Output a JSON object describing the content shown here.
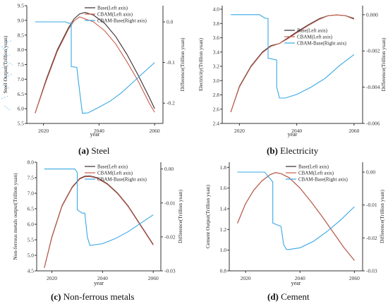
{
  "colors": {
    "base": "#3a2b2e",
    "cbam": "#c8604d",
    "diff": "#38a8e6",
    "axis": "#333333",
    "artifact": "#5ab8ea"
  },
  "panels": [
    {
      "key": "a",
      "caption_letter": "(a)",
      "caption_text": " Steel",
      "chart_data": {
        "type": "line",
        "title": "",
        "xlabel": "year",
        "ylabel_left": "Steel Output(Trillion yuan)",
        "ylabel_right": "Difference(Trillion yuan)",
        "xlim": [
          2014,
          2063
        ],
        "ylim_left": [
          5.5,
          9.5
        ],
        "ylim_right": [
          -0.25,
          0.04
        ],
        "x_ticks": [
          2020,
          2040,
          2060
        ],
        "y_left_ticks": [
          "5.5",
          "6.0",
          "6.5",
          "7.0",
          "7.5",
          "8.0",
          "8.5",
          "9.0",
          "9.5"
        ],
        "y_right_ticks": [
          "0.0",
          "-0.1",
          "-0.2"
        ],
        "legend": [
          "Base(Left axis)",
          "CBAM(Left axis)",
          "CBAM-Base(Right axis)"
        ],
        "legend_position": "top-right",
        "series": [
          {
            "name": "Base(Left axis)",
            "axis": "left",
            "color_key": "base",
            "x": [
              2017,
              2021,
              2025,
              2029,
              2031,
              2033,
              2035,
              2038,
              2042,
              2046,
              2050,
              2054,
              2058,
              2060
            ],
            "y": [
              5.85,
              7.0,
              8.0,
              8.75,
              9.05,
              9.22,
              9.27,
              9.18,
              8.9,
              8.45,
              7.85,
              7.15,
              6.4,
              6.0
            ]
          },
          {
            "name": "CBAM(Left axis)",
            "axis": "left",
            "color_key": "cbam",
            "x": [
              2017,
              2021,
              2025,
              2029,
              2031,
              2033,
              2035,
              2038,
              2042,
              2046,
              2050,
              2054,
              2058,
              2060
            ],
            "y": [
              5.85,
              6.95,
              7.95,
              8.7,
              8.98,
              9.12,
              9.05,
              8.95,
              8.65,
              8.2,
              7.6,
              6.95,
              6.2,
              5.88
            ]
          },
          {
            "name": "CBAM-Base(Right axis)",
            "axis": "right",
            "color_key": "diff",
            "x": [
              2017,
              2028,
              2029,
              2030,
              2030,
              2032,
              2033,
              2034,
              2036,
              2040,
              2044,
              2048,
              2052,
              2056,
              2060
            ],
            "y": [
              0.0,
              0.0,
              -0.003,
              -0.003,
              -0.11,
              -0.112,
              -0.17,
              -0.225,
              -0.224,
              -0.21,
              -0.195,
              -0.175,
              -0.15,
              -0.125,
              -0.1
            ]
          }
        ]
      }
    },
    {
      "key": "b",
      "caption_letter": "(b)",
      "caption_text": " Electricity",
      "chart_data": {
        "type": "line",
        "title": "",
        "xlabel": "year",
        "ylabel_left": "Electricity(Trillion yuan)",
        "ylabel_right": "Difference(Trillion yuan)",
        "xlim": [
          2014,
          2063
        ],
        "ylim_left": [
          2.4,
          4.05
        ],
        "ylim_right": [
          -0.006,
          0.0005
        ],
        "x_ticks": [
          2020,
          2040,
          2060
        ],
        "y_left_ticks": [
          "2.4",
          "2.6",
          "2.8",
          "3.0",
          "3.2",
          "3.4",
          "3.6",
          "3.8",
          "4.0"
        ],
        "y_right_ticks": [
          "0.000",
          "-0.002",
          "-0.004",
          "-0.006"
        ],
        "legend": [
          "Base(Left axis)",
          "CBAM(Left axis)",
          "CBAM-Base(Right axis)"
        ],
        "legend_position": "right",
        "series": [
          {
            "name": "Base(Left axis)",
            "axis": "left",
            "color_key": "base",
            "x": [
              2017,
              2020,
              2024,
              2028,
              2031,
              2034,
              2037,
              2040,
              2044,
              2048,
              2051,
              2054,
              2057,
              2060
            ],
            "y": [
              2.56,
              2.92,
              3.2,
              3.4,
              3.49,
              3.52,
              3.6,
              3.68,
              3.78,
              3.87,
              3.91,
              3.92,
              3.91,
              3.87
            ]
          },
          {
            "name": "CBAM(Left axis)",
            "axis": "left",
            "color_key": "cbam",
            "x": [
              2017,
              2020,
              2024,
              2028,
              2031,
              2034,
              2037,
              2040,
              2044,
              2048,
              2051,
              2054,
              2057,
              2060
            ],
            "y": [
              2.56,
              2.91,
              3.19,
              3.39,
              3.48,
              3.52,
              3.59,
              3.67,
              3.77,
              3.86,
              3.91,
              3.92,
              3.91,
              3.86
            ]
          },
          {
            "name": "CBAM-Base(Right axis)",
            "axis": "right",
            "color_key": "diff",
            "x": [
              2017,
              2027,
              2028,
              2029,
              2030,
              2030,
              2033,
              2033,
              2034,
              2036,
              2040,
              2045,
              2050,
              2055,
              2060
            ],
            "y": [
              0.0,
              0.0,
              -0.0001,
              -0.0002,
              -0.0002,
              -0.0024,
              -0.0025,
              -0.004,
              -0.0046,
              -0.0046,
              -0.0044,
              -0.004,
              -0.0035,
              -0.0028,
              -0.0022
            ]
          }
        ]
      }
    },
    {
      "key": "c",
      "caption_letter": "(c)",
      "caption_text": " Non-ferrous metals",
      "chart_data": {
        "type": "line",
        "title": "",
        "xlabel": "year",
        "ylabel_left": "Non-ferrous metals output(Trillion yuan)",
        "ylabel_right": "Difference(Trillion yuan)",
        "xlim": [
          2014,
          2063
        ],
        "ylim_left": [
          4.5,
          8.0
        ],
        "ylim_right": [
          -0.03,
          0.002
        ],
        "x_ticks": [
          2020,
          2040,
          2060
        ],
        "y_left_ticks": [
          "4.5",
          "5.0",
          "5.5",
          "6.0",
          "6.5",
          "7.0",
          "7.5",
          "8.0"
        ],
        "y_right_ticks": [
          "0.00",
          "-0.01",
          "-0.02",
          "-0.03"
        ],
        "legend": [
          "Base(Left axis)",
          "CBAM(Left axis)",
          "CBAM-Base(Right axis)"
        ],
        "legend_position": "top-right",
        "series": [
          {
            "name": "Base(Left axis)",
            "axis": "left",
            "color_key": "base",
            "x": [
              2017,
              2020,
              2024,
              2028,
              2031,
              2033,
              2035,
              2038,
              2042,
              2046,
              2050,
              2054,
              2058,
              2060
            ],
            "y": [
              4.6,
              5.6,
              6.6,
              7.2,
              7.48,
              7.55,
              7.56,
              7.5,
              7.3,
              7.0,
              6.6,
              6.1,
              5.6,
              5.35
            ]
          },
          {
            "name": "CBAM(Left axis)",
            "axis": "left",
            "color_key": "cbam",
            "x": [
              2017,
              2020,
              2024,
              2028,
              2031,
              2033,
              2035,
              2038,
              2042,
              2046,
              2050,
              2054,
              2058,
              2060
            ],
            "y": [
              4.6,
              5.58,
              6.58,
              7.18,
              7.46,
              7.53,
              7.54,
              7.48,
              7.28,
              6.98,
              6.58,
              6.08,
              5.58,
              5.33
            ]
          },
          {
            "name": "CBAM-Base(Right axis)",
            "axis": "right",
            "color_key": "diff",
            "x": [
              2017,
              2029,
              2030,
              2030,
              2032,
              2033,
              2034,
              2035,
              2040,
              2045,
              2050,
              2055,
              2060
            ],
            "y": [
              0.0,
              0.0,
              -0.001,
              -0.012,
              -0.013,
              -0.013,
              -0.02,
              -0.0225,
              -0.022,
              -0.0205,
              -0.0185,
              -0.016,
              -0.0135
            ]
          }
        ]
      }
    },
    {
      "key": "d",
      "caption_letter": "(d)",
      "caption_text": " Cement",
      "chart_data": {
        "type": "line",
        "title": "",
        "xlabel": "year",
        "ylabel_left": "Cement Output(Trillion yuan)",
        "ylabel_right": "Difference(Trillion yuan)",
        "xlim": [
          2014,
          2063
        ],
        "ylim_left": [
          0.8,
          1.85
        ],
        "ylim_right": [
          -0.03,
          0.003
        ],
        "x_ticks": [
          2020,
          2040,
          2060
        ],
        "y_left_ticks": [
          "0.8",
          "1.0",
          "1.2",
          "1.4",
          "1.6",
          "1.8"
        ],
        "y_right_ticks": [
          "0.00",
          "-0.01",
          "-0.02",
          "-0.03"
        ],
        "legend": [
          "Base(Left axis)",
          "CBAM(Left axis)",
          "CBAM-Base(Right axis)"
        ],
        "legend_position": "top-right",
        "series": [
          {
            "name": "Base(Left axis)",
            "axis": "left",
            "color_key": "base",
            "x": [
              2017,
              2020,
              2023,
              2026,
              2029,
              2031,
              2033,
              2036,
              2040,
              2044,
              2048,
              2052,
              2056,
              2060
            ],
            "y": [
              1.26,
              1.45,
              1.58,
              1.67,
              1.73,
              1.75,
              1.74,
              1.7,
              1.6,
              1.47,
              1.33,
              1.18,
              1.03,
              0.9
            ]
          },
          {
            "name": "CBAM(Left axis)",
            "axis": "left",
            "color_key": "cbam",
            "x": [
              2017,
              2020,
              2023,
              2026,
              2029,
              2031,
              2033,
              2036,
              2040,
              2044,
              2048,
              2052,
              2056,
              2060
            ],
            "y": [
              1.26,
              1.45,
              1.58,
              1.67,
              1.73,
              1.75,
              1.74,
              1.7,
              1.6,
              1.47,
              1.33,
              1.18,
              1.03,
              0.9
            ]
          },
          {
            "name": "CBAM-Base(Right axis)",
            "axis": "right",
            "color_key": "diff",
            "x": [
              2017,
              2027,
              2028,
              2029,
              2030,
              2030,
              2033,
              2034,
              2035,
              2036,
              2040,
              2045,
              2050,
              2055,
              2060
            ],
            "y": [
              0.0,
              0.0,
              -0.001,
              -0.002,
              -0.003,
              -0.0155,
              -0.0165,
              -0.022,
              -0.0235,
              -0.0235,
              -0.023,
              -0.021,
              -0.018,
              -0.0145,
              -0.0105
            ]
          }
        ]
      }
    }
  ]
}
